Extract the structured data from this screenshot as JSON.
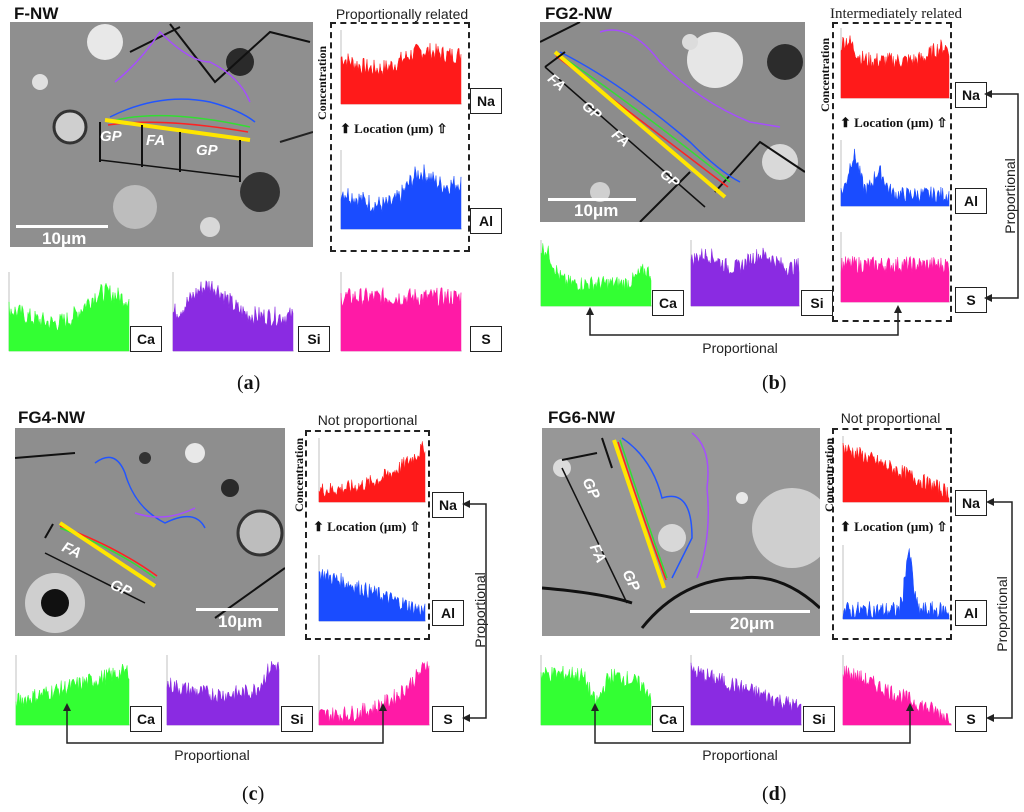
{
  "panels": {
    "a": {
      "title": "F-NW",
      "relation": "Proportionally related",
      "label_letter": "a",
      "scale": "10μm",
      "seg_labels": [
        "GP",
        "FA",
        "GP"
      ]
    },
    "b": {
      "title": "FG2-NW",
      "relation": "Intermediately related",
      "label_letter": "b",
      "scale": "10μm",
      "seg_labels": [
        "FA",
        "GP",
        "FA",
        "GP"
      ],
      "side_label": "Proportional",
      "bottom_label": "Proportional"
    },
    "c": {
      "title": "FG4-NW",
      "relation": "Not proportional",
      "label_letter": "c",
      "scale": "10μm",
      "seg_labels": [
        "FA",
        "GP"
      ],
      "side_label": "Proportional",
      "bottom_label": "Proportional"
    },
    "d": {
      "title": "FG6-NW",
      "relation": "Not proportional",
      "label_letter": "d",
      "scale": "20μm",
      "seg_labels": [
        "GP",
        "FA",
        "GP"
      ],
      "side_label": "Proportional",
      "bottom_label": "Proportional"
    }
  },
  "axis": {
    "ylabel": "Concentration",
    "xlabel": "Location (μm)"
  },
  "elements": {
    "na": "Na",
    "al": "Al",
    "ca": "Ca",
    "si": "Si",
    "s": "S"
  },
  "paren_open": "(",
  "paren_close": ")",
  "colors": {
    "na": "#ff1a1a",
    "al": "#1a4cff",
    "ca": "#33ff33",
    "si": "#8a2be2",
    "s": "#ff1aa6",
    "highlight": "#ffe600"
  }
}
